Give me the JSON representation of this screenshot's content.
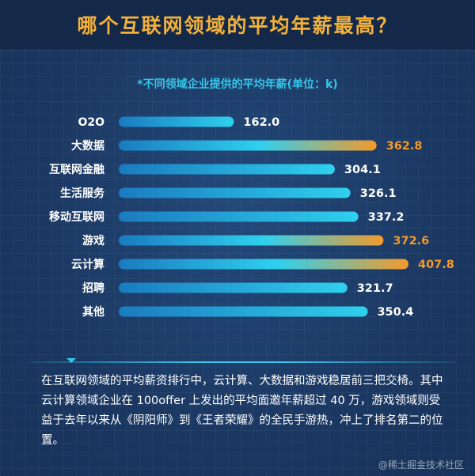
{
  "header": {
    "title": "哪个互联网领域的平均年薪最高？"
  },
  "chart_data": {
    "type": "bar",
    "orientation": "horizontal",
    "title": "*不同领域企业提供的平均年薪(单位：k)",
    "categories": [
      "O2O",
      "大数据",
      "互联网金融",
      "生活服务",
      "移动互联网",
      "游戏",
      "云计算",
      "招聘",
      "其他"
    ],
    "values": [
      162.0,
      362.8,
      304.1,
      326.1,
      337.2,
      372.6,
      407.8,
      321.7,
      350.4
    ],
    "value_labels": [
      "162.0",
      "362.8",
      "304.1",
      "326.1",
      "337.2",
      "372.6",
      "407.8",
      "321.7",
      "350.4"
    ],
    "highlighted": [
      false,
      true,
      false,
      false,
      false,
      true,
      true,
      false,
      false
    ],
    "colors": {
      "bar_start": "#1a7bc0",
      "bar_end": "#2fd0ee",
      "highlight_end": "#f29a2a",
      "label": "#ffffff",
      "highlight_label": "#f29a2a"
    },
    "xlim": [
      0,
      420
    ],
    "grid": false,
    "legend": "none"
  },
  "note": {
    "text": "在互联网领域的平均薪资排行中，云计算、大数据和游戏稳居前三把交椅。其中云计算领域企业在 100offer 上发出的平均面邀年薪超过 40 万，游戏领域则受益于去年以来从《阴阳师》到《王者荣耀》的全民手游热，冲上了排名第二的位置。"
  },
  "watermark": {
    "text": "@稀土掘金技术社区"
  }
}
